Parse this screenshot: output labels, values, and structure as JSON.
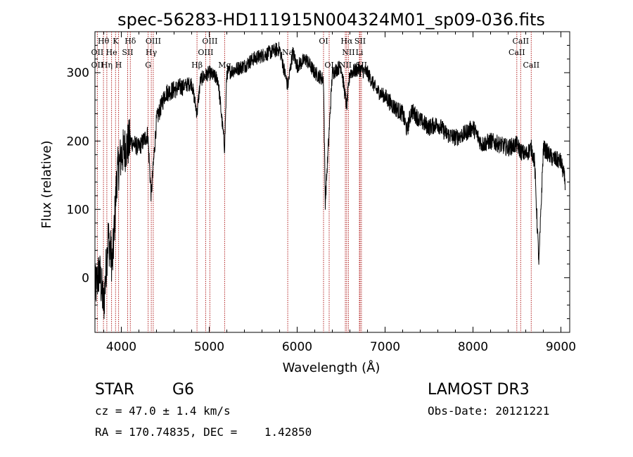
{
  "chart_data": {
    "type": "line",
    "title": "spec-56283-HD111915N004324M01_sp09-036.fits",
    "xlabel": "Wavelength (Å)",
    "ylabel": "Flux (relative)",
    "xlim": [
      3700,
      9100
    ],
    "ylim": [
      -80,
      360
    ],
    "xticks": [
      4000,
      5000,
      6000,
      7000,
      8000,
      9000
    ],
    "yticks": [
      0,
      100,
      200,
      300
    ],
    "xtick_labels": [
      "4000",
      "5000",
      "6000",
      "7000",
      "8000",
      "9000"
    ],
    "ytick_labels": [
      "0",
      "100",
      "200",
      "300"
    ],
    "series": [
      {
        "name": "spectrum",
        "x": [
          3700,
          3750,
          3800,
          3850,
          3900,
          3950,
          4000,
          4100,
          4200,
          4300,
          4340,
          4400,
          4500,
          4600,
          4700,
          4800,
          4861,
          4900,
          5000,
          5100,
          5175,
          5200,
          5300,
          5400,
          5500,
          5600,
          5700,
          5800,
          5893,
          5950,
          6000,
          6100,
          6200,
          6300,
          6320,
          6400,
          6500,
          6563,
          6600,
          6700,
          6800,
          6900,
          7000,
          7100,
          7200,
          7250,
          7300,
          7400,
          7500,
          7600,
          7700,
          7800,
          7900,
          8000,
          8100,
          8200,
          8300,
          8400,
          8498,
          8542,
          8600,
          8662,
          8700,
          8750,
          8800,
          8900,
          9000,
          9050
        ],
        "values": [
          -20,
          10,
          -40,
          60,
          20,
          150,
          180,
          200,
          190,
          210,
          120,
          230,
          270,
          275,
          280,
          285,
          240,
          290,
          300,
          290,
          190,
          300,
          305,
          310,
          320,
          325,
          330,
          335,
          280,
          330,
          310,
          320,
          300,
          290,
          110,
          300,
          310,
          250,
          300,
          305,
          300,
          275,
          265,
          250,
          240,
          215,
          245,
          230,
          220,
          225,
          210,
          205,
          210,
          220,
          195,
          200,
          195,
          190,
          195,
          185,
          180,
          190,
          170,
          20,
          190,
          175,
          170,
          140
        ]
      }
    ],
    "line_labels": [
      {
        "text": "Hθ",
        "wave": 3797,
        "row": 1
      },
      {
        "text": "K",
        "wave": 3934,
        "row": 1
      },
      {
        "text": "Hδ",
        "wave": 4102,
        "row": 1
      },
      {
        "text": "OII",
        "wave": 3727,
        "row": 2
      },
      {
        "text": "He",
        "wave": 3889,
        "row": 2
      },
      {
        "text": "SII",
        "wave": 4072,
        "row": 2
      },
      {
        "text": "OII",
        "wave": 3727,
        "row": 3
      },
      {
        "text": "Hη",
        "wave": 3835,
        "row": 3
      },
      {
        "text": "H",
        "wave": 3969,
        "row": 3
      },
      {
        "text": "OIII",
        "wave": 4363,
        "row": 1
      },
      {
        "text": "Hγ",
        "wave": 4341,
        "row": 2
      },
      {
        "text": "G",
        "wave": 4305,
        "row": 3
      },
      {
        "text": "OIII",
        "wave": 5007,
        "row": 1
      },
      {
        "text": "OIII",
        "wave": 4959,
        "row": 2
      },
      {
        "text": "Hβ",
        "wave": 4861,
        "row": 3
      },
      {
        "text": "Mg",
        "wave": 5175,
        "row": 3
      },
      {
        "text": "Na",
        "wave": 5893,
        "row": 2
      },
      {
        "text": "OI",
        "wave": 6300,
        "row": 1
      },
      {
        "text": "OI",
        "wave": 6364,
        "row": 3
      },
      {
        "text": "Hα",
        "wave": 6563,
        "row": 1
      },
      {
        "text": "SII",
        "wave": 6716,
        "row": 1
      },
      {
        "text": "NII",
        "wave": 6583,
        "row": 2
      },
      {
        "text": "Li",
        "wave": 6708,
        "row": 2
      },
      {
        "text": "NII",
        "wave": 6548,
        "row": 3
      },
      {
        "text": "SII",
        "wave": 6731,
        "row": 3
      },
      {
        "text": "CaII",
        "wave": 8542,
        "row": 1
      },
      {
        "text": "CaII",
        "wave": 8498,
        "row": 2
      },
      {
        "text": "CaII",
        "wave": 8662,
        "row": 3
      }
    ],
    "line_markers": [
      3727,
      3797,
      3835,
      3889,
      3934,
      3969,
      4072,
      4102,
      4305,
      4341,
      4363,
      4861,
      4959,
      5007,
      5175,
      5893,
      6300,
      6364,
      6548,
      6563,
      6583,
      6708,
      6716,
      6731,
      8498,
      8542,
      8662
    ],
    "marker_color": "#b22222",
    "line_color": "#000000"
  },
  "info": {
    "object_class": "STAR",
    "subclass": "G6",
    "survey": "LAMOST DR3",
    "redshift": "cz = 47.0 ± 1.4 km/s",
    "obs_date": "Obs-Date: 20121221",
    "coords": "RA = 170.74835, DEC =    1.42850"
  }
}
